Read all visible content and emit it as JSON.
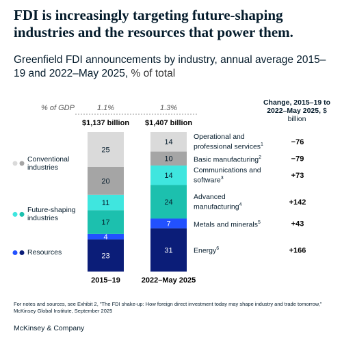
{
  "chart_data": {
    "type": "stacked-bar",
    "title": "FDI is increasingly targeting future-shaping industries and the resources that power them.",
    "subtitle": "Greenfield FDI announcements by industry, annual average 2015–19 and 2022–May 2025,",
    "subtitle_unit": "% of total",
    "categories": [
      "2015–19",
      "2022–May 2025"
    ],
    "gdp": {
      "label": "% of GDP",
      "values": [
        1.1,
        1.3
      ],
      "value_labels": [
        "1.1%",
        "1.3%"
      ]
    },
    "totals": {
      "values": [
        1137,
        1407
      ],
      "value_labels": [
        "$1,137 billion",
        "$1,407 billion"
      ]
    },
    "change_header": "Change, 2015–19 to 2022–May 2025,",
    "change_unit": "$ billion",
    "series": [
      {
        "name": "Energy",
        "superscript": "6",
        "color": "#0b1d78",
        "values": [
          23,
          31
        ],
        "change": 166,
        "change_label": "+166"
      },
      {
        "name": "Metals and minerals",
        "superscript": "5",
        "color": "#2251ff",
        "values": [
          4,
          7
        ],
        "change": 43,
        "change_label": "+43"
      },
      {
        "name": "Advanced manufacturing",
        "superscript": "4",
        "color": "#1cc0ae",
        "values": [
          17,
          24
        ],
        "change": 142,
        "change_label": "+142"
      },
      {
        "name": "Communications and software",
        "superscript": "3",
        "color": "#3fe6df",
        "values": [
          11,
          14
        ],
        "change": 73,
        "change_label": "+73"
      },
      {
        "name": "Basic manufacturing",
        "superscript": "2",
        "color": "#a5a5a5",
        "values": [
          20,
          10
        ],
        "change": -79,
        "change_label": "−79"
      },
      {
        "name": "Operational and professional services",
        "superscript": "1",
        "color": "#dadada",
        "values": [
          25,
          14
        ],
        "change": -76,
        "change_label": "−76"
      }
    ],
    "groups": [
      {
        "name": "Resources",
        "series": [
          0,
          1
        ]
      },
      {
        "name": "Future-shaping industries",
        "series": [
          2,
          3
        ]
      },
      {
        "name": "Conventional industries",
        "series": [
          4,
          5
        ]
      }
    ],
    "footnote": "For notes and sources, see Exhibit 2, \"The FDI shake-up: How foreign direct investment today may shape industry and trade tomorrow,\" McKinsey Global Institute, September 2025",
    "source_brand": "McKinsey & Company"
  }
}
